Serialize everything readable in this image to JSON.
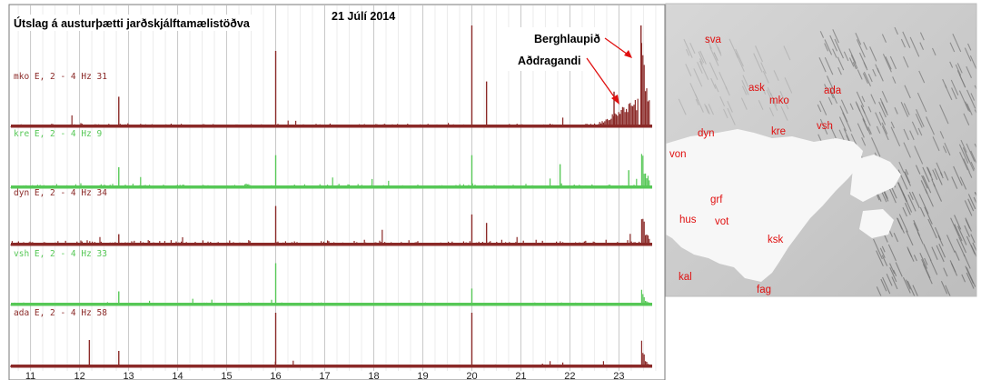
{
  "chart_data": {
    "type": "line",
    "title": "Útslag á austurþætti jarðskjálftamælistöðva",
    "date": "21 Júlí 2014",
    "x_tick_labels": [
      "11",
      "12",
      "13",
      "14",
      "15",
      "16",
      "17",
      "18",
      "19",
      "20",
      "21",
      "22",
      "23"
    ],
    "x_range_hours": [
      10.6,
      23.9
    ],
    "traces": [
      {
        "label": "mko E, 2 - 4 Hz 31",
        "color": "#8b2a28",
        "baseline_level": 0.04,
        "spikes": [
          {
            "hour": 12.8,
            "level": 0.3
          },
          {
            "hour": 16.0,
            "level": 0.75
          },
          {
            "hour": 20.0,
            "level": 1.0
          },
          {
            "hour": 20.3,
            "level": 0.45
          },
          {
            "hour": 22.9,
            "level": 0.35
          },
          {
            "hour": 23.45,
            "level": 1.0
          }
        ],
        "precursor": {
          "start_hour": 22.5,
          "end_hour": 23.4,
          "peak_level": 0.3
        },
        "event": {
          "hour": 23.45,
          "level": 1.0,
          "decay_hours": 0.45
        }
      },
      {
        "label": "kre E, 2 - 4 Hz 9",
        "color": "#57c857",
        "baseline_level": 0.08,
        "spikes": [
          {
            "hour": 12.8,
            "level": 0.35
          },
          {
            "hour": 16.0,
            "level": 0.55
          },
          {
            "hour": 20.0,
            "level": 0.55
          },
          {
            "hour": 21.8,
            "level": 0.4
          },
          {
            "hour": 23.2,
            "level": 0.3
          }
        ],
        "event": {
          "hour": 23.45,
          "level": 0.85,
          "decay_hours": 0.3
        }
      },
      {
        "label": "dyn E, 2 - 4 Hz 34",
        "color": "#8b2a28",
        "baseline_level": 0.1,
        "spikes": [
          {
            "hour": 12.8,
            "level": 0.2
          },
          {
            "hour": 16.0,
            "level": 0.7
          },
          {
            "hour": 20.0,
            "level": 0.55
          },
          {
            "hour": 20.3,
            "level": 0.4
          }
        ],
        "event": {
          "hour": 23.45,
          "level": 0.9,
          "decay_hours": 0.25
        }
      },
      {
        "label": "vsh E, 2 - 4 Hz 33",
        "color": "#57c857",
        "baseline_level": 0.06,
        "spikes": [
          {
            "hour": 12.8,
            "level": 0.25
          },
          {
            "hour": 16.0,
            "level": 0.75
          },
          {
            "hour": 20.0,
            "level": 0.3
          }
        ],
        "event": {
          "hour": 23.45,
          "level": 0.45,
          "decay_hours": 0.2
        }
      },
      {
        "label": "ada E, 2 - 4 Hz 58",
        "color": "#8b2a28",
        "baseline_level": 0.05,
        "spikes": [
          {
            "hour": 12.2,
            "level": 0.5
          },
          {
            "hour": 12.8,
            "level": 0.3
          },
          {
            "hour": 16.0,
            "level": 1.0
          },
          {
            "hour": 20.0,
            "level": 1.0
          }
        ],
        "event": {
          "hour": 23.45,
          "level": 0.6,
          "decay_hours": 0.2
        }
      }
    ],
    "annotations": [
      {
        "text": "Berghlaupið",
        "target_trace": "mko",
        "target_hour": 23.45
      },
      {
        "text": "Aðdragandi",
        "target_trace": "mko",
        "target_hour": 23.1
      }
    ]
  },
  "map": {
    "stations": [
      "sva",
      "ask",
      "mko",
      "ada",
      "vsh",
      "kre",
      "dyn",
      "von",
      "grf",
      "hus",
      "vot",
      "ksk",
      "kal",
      "fag"
    ],
    "label_color": "#e01010"
  }
}
